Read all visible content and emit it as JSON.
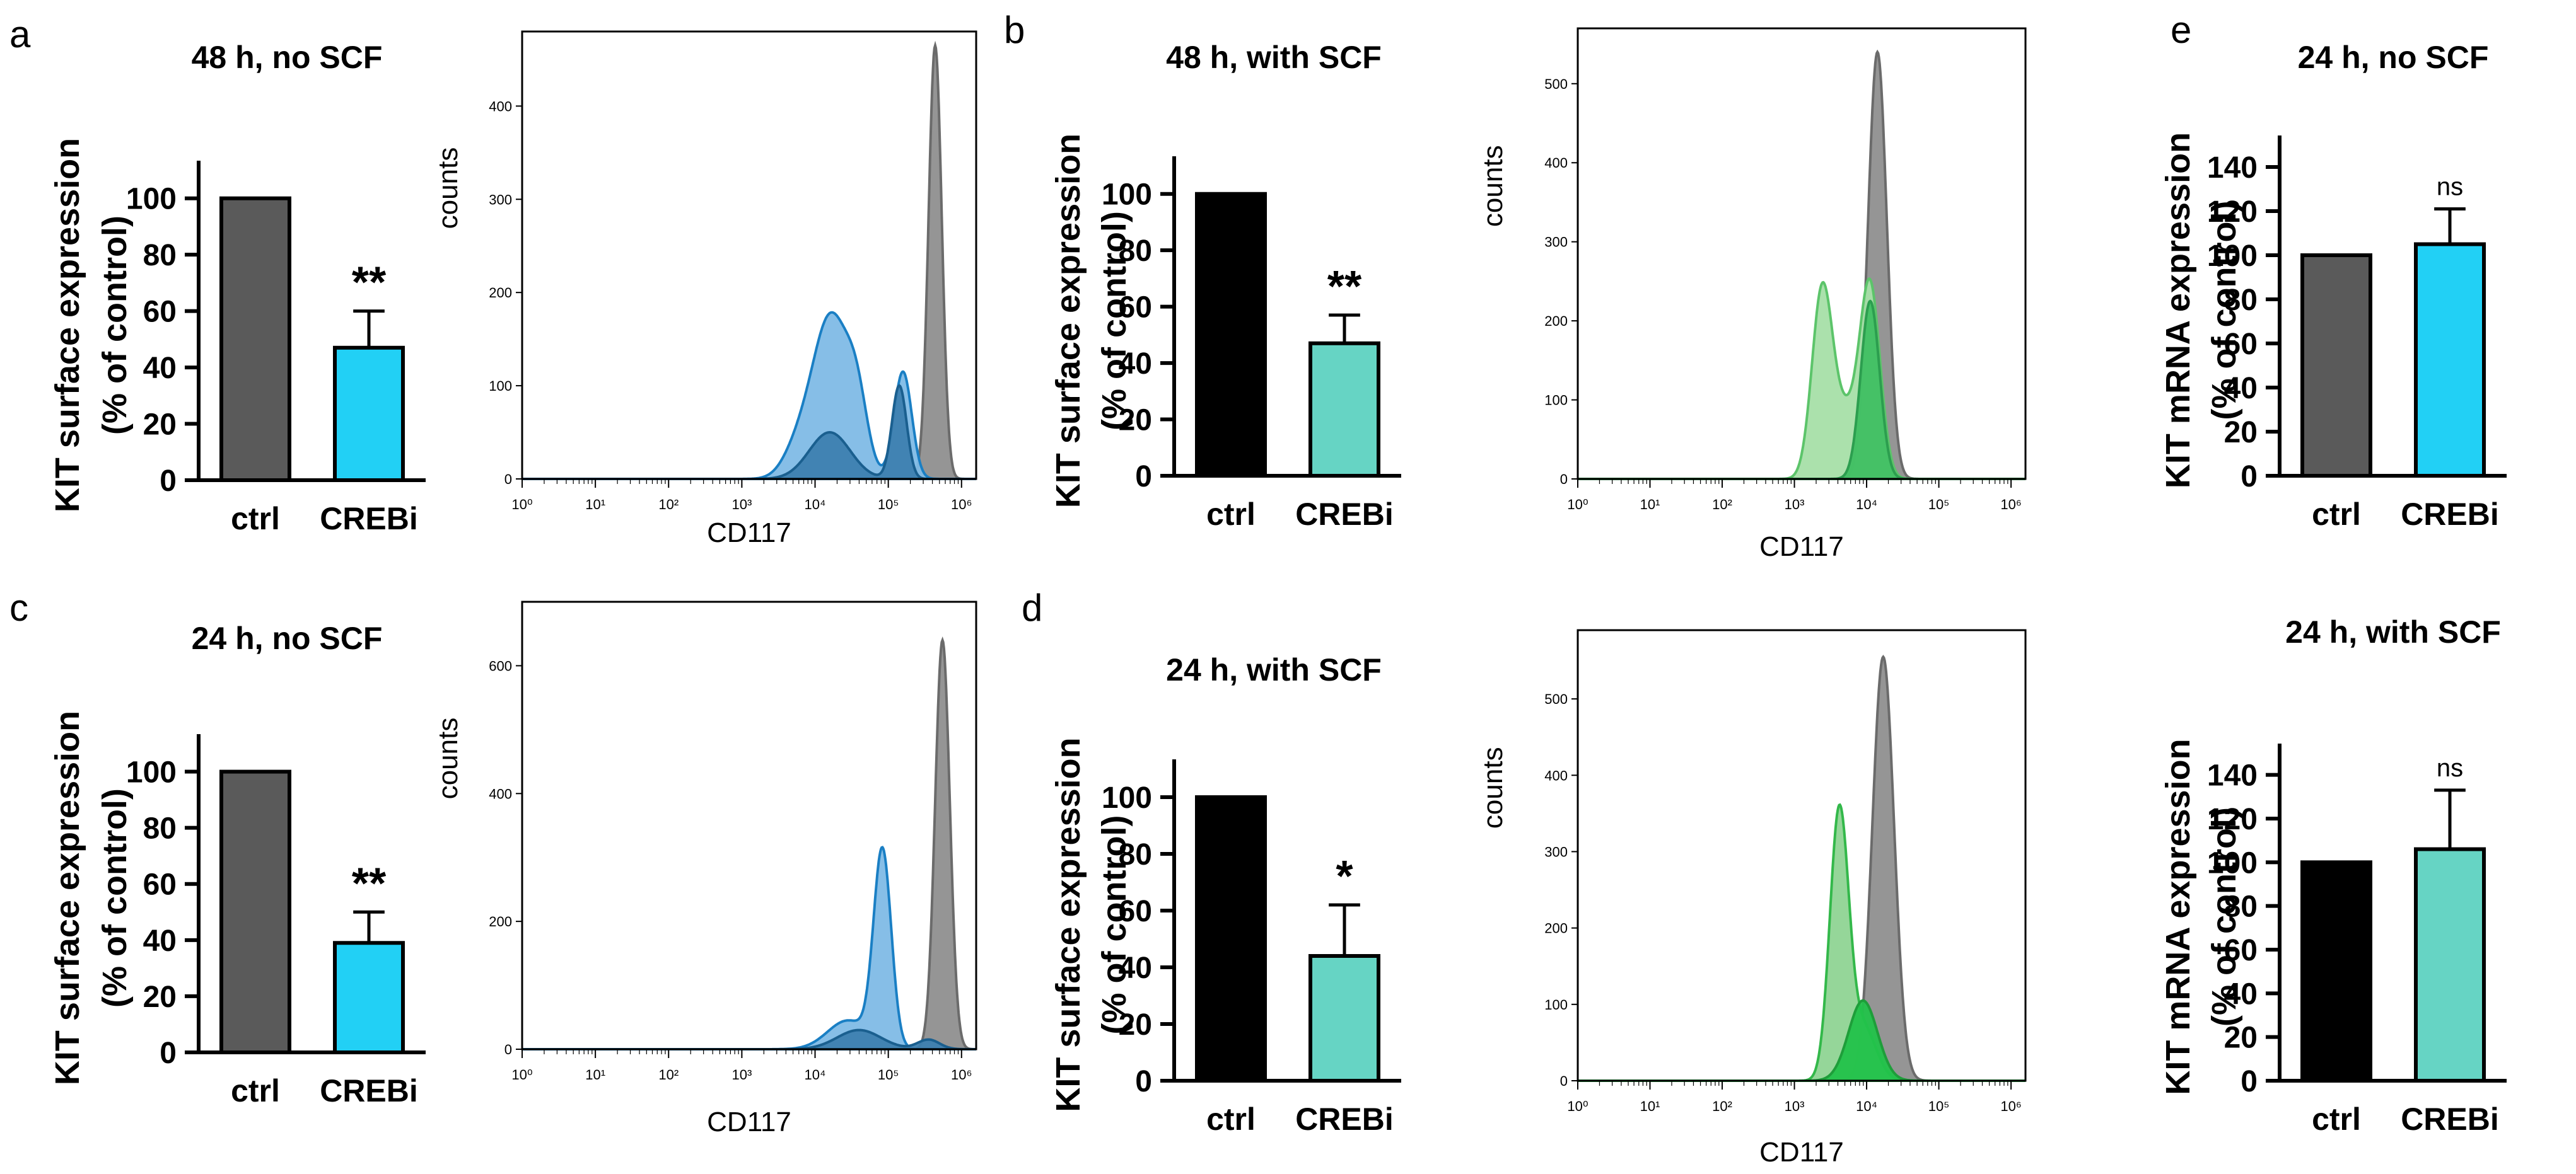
{
  "chart_data": [
    {
      "panel": "a",
      "type": "bar",
      "title": "48 h, no SCF",
      "ylabel_line1": "KIT surface expression",
      "ylabel_line2": "(% of control)",
      "categories": [
        "ctrl",
        "CREBi"
      ],
      "values": [
        100,
        47
      ],
      "errors": [
        0,
        13
      ],
      "colors": [
        "#5a5a5a",
        "#22d0f5"
      ],
      "significance": "**",
      "ylim": [
        0,
        110
      ],
      "yticks": [
        0,
        20,
        40,
        60,
        80,
        100
      ]
    },
    {
      "panel": "a",
      "type": "histogram",
      "xlabel": "CD117",
      "ylabel": "counts",
      "yticks": [
        0,
        100,
        200,
        300,
        400
      ],
      "ymax": 480,
      "xtick_labels": [
        "10⁰",
        "10¹",
        "10²",
        "10³",
        "10⁴",
        "10⁵",
        "10⁶"
      ],
      "series": [
        {
          "name": "control",
          "color": "#6b6b6b",
          "fill": "#8f8f8f",
          "peaks": [
            [
              5.64,
              465,
              0.09
            ]
          ]
        },
        {
          "name": "CREBi",
          "color": "#1a7fc4",
          "fill": "#7fbbe6",
          "peaks": [
            [
              4.22,
              175,
              0.26
            ],
            [
              4.58,
              55,
              0.14
            ],
            [
              5.2,
              115,
              0.12
            ],
            [
              3.75,
              25,
              0.2
            ]
          ]
        },
        {
          "name": "overlap",
          "color": "#1a5f8f",
          "fill": "#3d7fb0",
          "peaks": [
            [
              4.2,
              50,
              0.28
            ],
            [
              5.15,
              100,
              0.1
            ]
          ]
        }
      ]
    },
    {
      "panel": "b",
      "type": "bar",
      "title": "48 h, with SCF",
      "ylabel_line1": "KIT surface expression",
      "ylabel_line2": "(% of control)",
      "categories": [
        "ctrl",
        "CREBi"
      ],
      "values": [
        100,
        47
      ],
      "errors": [
        0,
        10
      ],
      "colors": [
        "#000000",
        "#66d4c4"
      ],
      "significance": "**",
      "ylim": [
        0,
        110
      ],
      "yticks": [
        0,
        20,
        40,
        60,
        80,
        100
      ]
    },
    {
      "panel": "b",
      "type": "histogram",
      "xlabel": "CD117",
      "ylabel": "counts",
      "yticks": [
        0,
        100,
        200,
        300,
        400,
        500
      ],
      "ymax": 570,
      "xtick_labels": [
        "10⁰",
        "10¹",
        "10²",
        "10³",
        "10⁴",
        "10⁵",
        "10⁶"
      ],
      "series": [
        {
          "name": "control",
          "color": "#6b6b6b",
          "fill": "#8f8f8f",
          "peaks": [
            [
              4.15,
              540,
              0.13
            ]
          ]
        },
        {
          "name": "CREBi",
          "color": "#5cc46a",
          "fill": "#a6dfa8",
          "peaks": [
            [
              3.38,
              225,
              0.14
            ],
            [
              4.05,
              235,
              0.14
            ],
            [
              3.7,
              80,
              0.2
            ]
          ]
        },
        {
          "name": "overlap",
          "color": "#2c9e4f",
          "fill": "#3fbf62",
          "peaks": [
            [
              4.05,
              225,
              0.13
            ]
          ]
        }
      ]
    },
    {
      "panel": "c",
      "type": "bar",
      "title": "24 h, no SCF",
      "ylabel_line1": "KIT surface expression",
      "ylabel_line2": "(% of control)",
      "categories": [
        "ctrl",
        "CREBi"
      ],
      "values": [
        100,
        39
      ],
      "errors": [
        0,
        11
      ],
      "colors": [
        "#5a5a5a",
        "#22d0f5"
      ],
      "significance": "**",
      "ylim": [
        0,
        110
      ],
      "yticks": [
        0,
        20,
        40,
        60,
        80,
        100
      ]
    },
    {
      "panel": "c",
      "type": "histogram",
      "xlabel": "CD117",
      "ylabel": "counts",
      "yticks": [
        0,
        200,
        400,
        600
      ],
      "ymax": 700,
      "xtick_labels": [
        "10⁰",
        "10¹",
        "10²",
        "10³",
        "10⁴",
        "10⁵",
        "10⁶"
      ],
      "series": [
        {
          "name": "control",
          "color": "#6b6b6b",
          "fill": "#8f8f8f",
          "peaks": [
            [
              5.74,
              640,
              0.1
            ]
          ]
        },
        {
          "name": "CREBi",
          "color": "#1a7fc4",
          "fill": "#7fbbe6",
          "peaks": [
            [
              4.92,
              305,
              0.12
            ],
            [
              4.45,
              45,
              0.28
            ]
          ]
        },
        {
          "name": "overlap",
          "color": "#1a5f8f",
          "fill": "#3d7fb0",
          "peaks": [
            [
              4.6,
              30,
              0.3
            ],
            [
              5.55,
              15,
              0.15
            ]
          ]
        }
      ]
    },
    {
      "panel": "d",
      "type": "bar",
      "title": "24 h, with SCF",
      "ylabel_line1": "KIT surface expression",
      "ylabel_line2": "(% of control)",
      "categories": [
        "ctrl",
        "CREBi"
      ],
      "values": [
        100,
        44
      ],
      "errors": [
        0,
        18
      ],
      "colors": [
        "#000000",
        "#66d4c4"
      ],
      "significance": "*",
      "ylim": [
        0,
        110
      ],
      "yticks": [
        0,
        20,
        40,
        60,
        80,
        100
      ]
    },
    {
      "panel": "d",
      "type": "histogram",
      "xlabel": "CD117",
      "ylabel": "counts",
      "yticks": [
        0,
        100,
        200,
        300,
        400,
        500
      ],
      "ymax": 590,
      "xtick_labels": [
        "10⁰",
        "10¹",
        "10²",
        "10³",
        "10⁴",
        "10⁵",
        "10⁶"
      ],
      "series": [
        {
          "name": "control",
          "color": "#6b6b6b",
          "fill": "#8f8f8f",
          "peaks": [
            [
              4.23,
              555,
              0.15
            ]
          ]
        },
        {
          "name": "CREBi",
          "color": "#33b84a",
          "fill": "#8fd494",
          "peaks": [
            [
              3.62,
              348,
              0.13
            ],
            [
              3.95,
              70,
              0.18
            ]
          ]
        },
        {
          "name": "overlap",
          "color": "#1e9e3a",
          "fill": "#22c24a",
          "peaks": [
            [
              3.95,
              105,
              0.2
            ]
          ]
        }
      ]
    },
    {
      "panel": "e",
      "type": "bar",
      "title": "24 h, no SCF",
      "ylabel_line1": "KIT mRNA expression",
      "ylabel_line2": "(% of control)",
      "categories": [
        "ctrl",
        "CREBi"
      ],
      "values": [
        100,
        105
      ],
      "errors": [
        0,
        16
      ],
      "colors": [
        "#5a5a5a",
        "#22d0f5"
      ],
      "significance": "ns",
      "ylim": [
        0,
        150
      ],
      "yticks": [
        0,
        20,
        40,
        60,
        80,
        100,
        120,
        140
      ]
    },
    {
      "panel": "e",
      "type": "bar",
      "title": "24 h, with SCF",
      "ylabel_line1": "KIT mRNA expression",
      "ylabel_line2": "(% of control)",
      "categories": [
        "ctrl",
        "CREBi"
      ],
      "values": [
        100,
        106
      ],
      "errors": [
        0,
        27
      ],
      "colors": [
        "#000000",
        "#66d4c4"
      ],
      "significance": "ns",
      "ylim": [
        0,
        150
      ],
      "yticks": [
        0,
        20,
        40,
        60,
        80,
        100,
        120,
        140
      ]
    }
  ],
  "panel_letters": [
    "a",
    "b",
    "c",
    "d",
    "e"
  ]
}
